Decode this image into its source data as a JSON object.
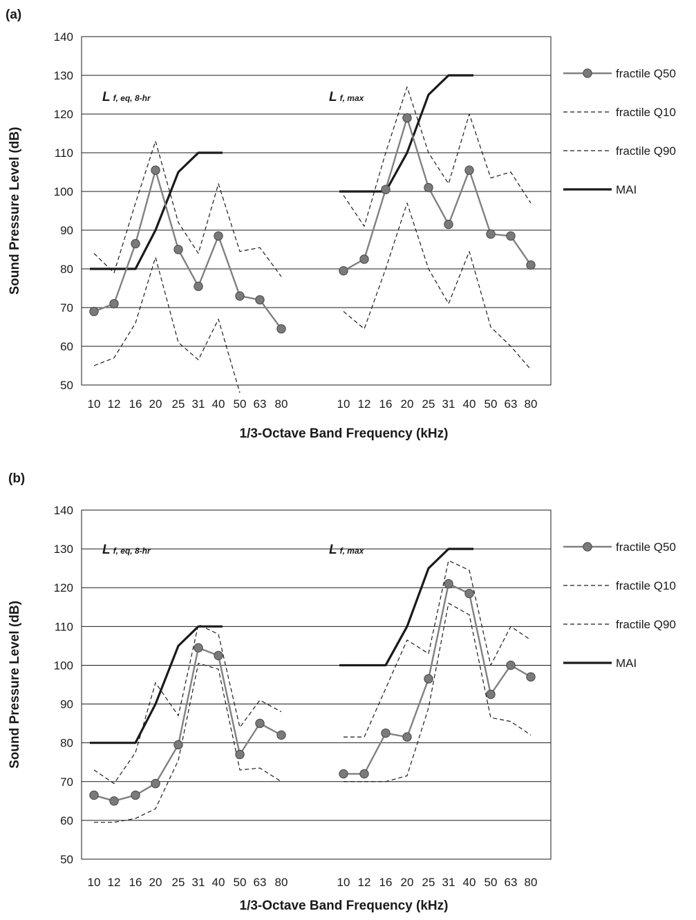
{
  "chart_data": [
    {
      "panel": "(a)",
      "type": "line",
      "ylabel": "Sound Pressure Level (dB)",
      "xlabel": "1/3-Octave Band Frequency (kHz)",
      "ylim": [
        50,
        140
      ],
      "yticks": [
        50,
        60,
        70,
        80,
        90,
        100,
        110,
        120,
        130,
        140
      ],
      "grid": true,
      "legend_position": "right",
      "groups": [
        {
          "label_main": "L",
          "label_sub": "f, eq, 8-hr",
          "x": [
            "10",
            "12",
            "16",
            "20",
            "25",
            "31",
            "40",
            "50",
            "63",
            "80"
          ],
          "series": [
            {
              "name": "fractile Q50",
              "values": [
                69,
                71,
                86.5,
                105.5,
                85,
                75.5,
                88.5,
                73,
                72,
                64.5
              ]
            },
            {
              "name": "fractile Q10",
              "values": [
                84,
                79,
                97,
                113,
                92,
                84,
                102,
                84.5,
                85.5,
                78
              ]
            },
            {
              "name": "fractile Q90",
              "values": [
                55,
                57,
                66,
                83,
                61,
                56.5,
                67,
                48,
                null,
                null
              ]
            },
            {
              "name": "MAI",
              "values": [
                80,
                80,
                80,
                90,
                105,
                110,
                110,
                null,
                null,
                null
              ]
            }
          ]
        },
        {
          "label_main": "L",
          "label_sub": "f,  max",
          "x": [
            "10",
            "12",
            "16",
            "20",
            "25",
            "31",
            "40",
            "50",
            "63",
            "80"
          ],
          "series": [
            {
              "name": "fractile Q50",
              "values": [
                79.5,
                82.5,
                100.5,
                119,
                101,
                91.5,
                105.5,
                89,
                88.5,
                81
              ]
            },
            {
              "name": "fractile Q10",
              "values": [
                99,
                91,
                110,
                127,
                110,
                102,
                120,
                103.5,
                105,
                97
              ]
            },
            {
              "name": "fractile Q90",
              "values": [
                69,
                64.5,
                80,
                97,
                80,
                71,
                84.5,
                65,
                60,
                54
              ]
            },
            {
              "name": "MAI",
              "values": [
                100,
                100,
                100,
                110,
                125,
                130,
                130,
                null,
                null,
                null
              ]
            }
          ]
        }
      ]
    },
    {
      "panel": "(b)",
      "type": "line",
      "ylabel": "Sound Pressure Level (dB)",
      "xlabel": "1/3-Octave Band Frequency (kHz)",
      "ylim": [
        50,
        140
      ],
      "yticks": [
        50,
        60,
        70,
        80,
        90,
        100,
        110,
        120,
        130,
        140
      ],
      "grid": true,
      "legend_position": "right",
      "groups": [
        {
          "label_main": "L",
          "label_sub": "f, eq, 8-hr",
          "x": [
            "10",
            "12",
            "16",
            "20",
            "25",
            "31",
            "40",
            "50",
            "63",
            "80"
          ],
          "series": [
            {
              "name": "fractile Q50",
              "values": [
                66.5,
                65,
                66.5,
                69.5,
                79.5,
                104.5,
                102.5,
                77,
                85,
                82
              ]
            },
            {
              "name": "fractile Q10",
              "values": [
                73,
                69.5,
                77.5,
                95.5,
                87,
                110.5,
                108,
                84,
                91,
                88
              ]
            },
            {
              "name": "fractile Q90",
              "values": [
                59.5,
                59.5,
                60.5,
                63,
                75.5,
                100.5,
                99,
                73,
                73.5,
                70
              ]
            },
            {
              "name": "MAI",
              "values": [
                80,
                80,
                80,
                90,
                105,
                110,
                110,
                null,
                null,
                null
              ]
            }
          ]
        },
        {
          "label_main": "L",
          "label_sub": "f,  max",
          "x": [
            "10",
            "12",
            "16",
            "20",
            "25",
            "31",
            "40",
            "50",
            "63",
            "80"
          ],
          "series": [
            {
              "name": "fractile Q50",
              "values": [
                72,
                72,
                82.5,
                81.5,
                96.5,
                121,
                118.5,
                92.5,
                100,
                97
              ]
            },
            {
              "name": "fractile Q10",
              "values": [
                81.5,
                81.5,
                94,
                106.5,
                103,
                127,
                124.5,
                100,
                110,
                106.5
              ]
            },
            {
              "name": "fractile Q90",
              "values": [
                70,
                70,
                70,
                71.5,
                89,
                116,
                113,
                86.5,
                85.5,
                82
              ]
            },
            {
              "name": "MAI",
              "values": [
                100,
                100,
                100,
                110,
                125,
                130,
                130,
                null,
                null,
                null
              ]
            }
          ]
        }
      ]
    }
  ],
  "legend": [
    {
      "name": "fractile Q50",
      "style": "marker-line"
    },
    {
      "name": "fractile Q10",
      "style": "dashed"
    },
    {
      "name": "fractile Q90",
      "style": "dashed"
    },
    {
      "name": "MAI",
      "style": "thick"
    }
  ],
  "colors": {
    "q50_line": "#808080",
    "q50_marker": "#7a7a7a",
    "dashed": "#1a1a1a",
    "mai": "#1a1a1a",
    "grid": "#1a1a1a"
  }
}
